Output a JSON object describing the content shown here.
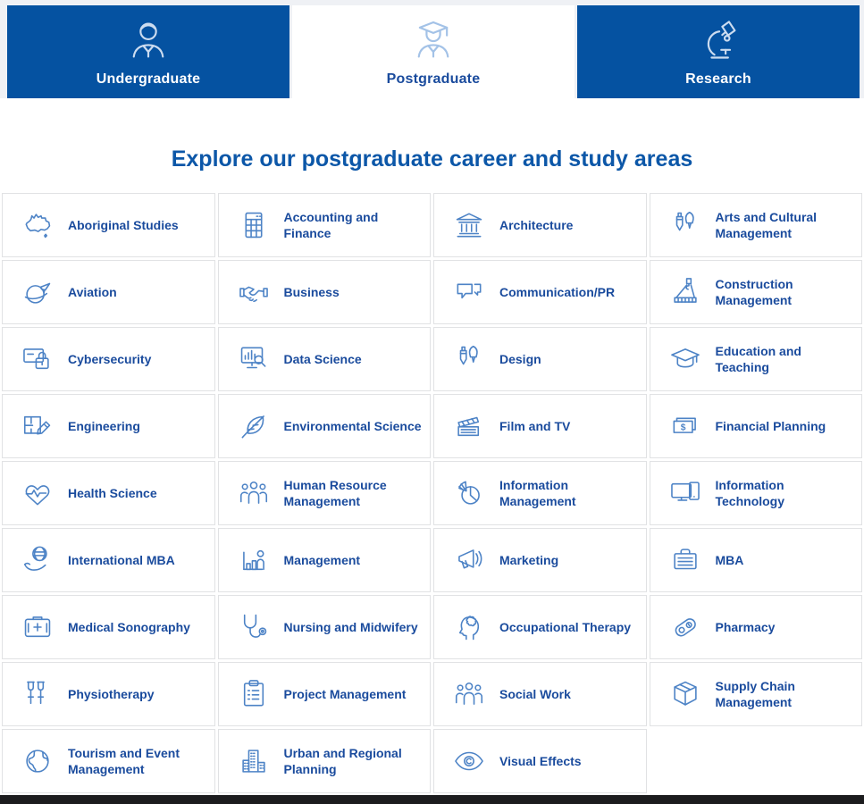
{
  "tabs": [
    {
      "label": "Undergraduate",
      "icon": "person-icon",
      "active": false
    },
    {
      "label": "Postgraduate",
      "icon": "graduate-icon",
      "active": true
    },
    {
      "label": "Research",
      "icon": "microscope-icon",
      "active": false
    }
  ],
  "heading": "Explore our postgraduate career and study areas",
  "study_areas": [
    {
      "label": "Aboriginal Studies",
      "icon": "australia-map-icon"
    },
    {
      "label": "Accounting and Finance",
      "icon": "calculator-icon"
    },
    {
      "label": "Architecture",
      "icon": "columns-building-icon"
    },
    {
      "label": "Arts and Cultural Management",
      "icon": "pen-brush-icon"
    },
    {
      "label": "Aviation",
      "icon": "globe-plane-icon"
    },
    {
      "label": "Business",
      "icon": "handshake-icon"
    },
    {
      "label": "Communication/PR",
      "icon": "speech-bubbles-icon"
    },
    {
      "label": "Construction Management",
      "icon": "crane-icon"
    },
    {
      "label": "Cybersecurity",
      "icon": "card-lock-icon"
    },
    {
      "label": "Data Science",
      "icon": "chart-magnifier-icon"
    },
    {
      "label": "Design",
      "icon": "pen-brush-icon"
    },
    {
      "label": "Education and Teaching",
      "icon": "graduation-cap-icon"
    },
    {
      "label": "Engineering",
      "icon": "blueprint-pencil-icon"
    },
    {
      "label": "Environmental Science",
      "icon": "leaf-icon"
    },
    {
      "label": "Film and TV",
      "icon": "clapperboard-icon"
    },
    {
      "label": "Financial Planning",
      "icon": "banknote-icon"
    },
    {
      "label": "Health Science",
      "icon": "heart-pulse-icon"
    },
    {
      "label": "Human Resource Management",
      "icon": "people-group-icon"
    },
    {
      "label": "Information Management",
      "icon": "pie-chart-icon"
    },
    {
      "label": "Information Technology",
      "icon": "monitor-phone-icon"
    },
    {
      "label": "International MBA",
      "icon": "hand-globe-icon"
    },
    {
      "label": "Management",
      "icon": "bar-chart-person-icon"
    },
    {
      "label": "Marketing",
      "icon": "megaphone-icon"
    },
    {
      "label": "MBA",
      "icon": "briefcase-icon"
    },
    {
      "label": "Medical Sonography",
      "icon": "first-aid-kit-icon"
    },
    {
      "label": "Nursing and Midwifery",
      "icon": "stethoscope-icon"
    },
    {
      "label": "Occupational Therapy",
      "icon": "head-brain-icon"
    },
    {
      "label": "Pharmacy",
      "icon": "pill-blister-icon"
    },
    {
      "label": "Physiotherapy",
      "icon": "crutches-icon"
    },
    {
      "label": "Project Management",
      "icon": "clipboard-checklist-icon"
    },
    {
      "label": "Social Work",
      "icon": "people-group-icon"
    },
    {
      "label": "Supply Chain Management",
      "icon": "box-icon"
    },
    {
      "label": "Tourism and Event Management",
      "icon": "globe-icon"
    },
    {
      "label": "Urban and Regional Planning",
      "icon": "buildings-icon"
    },
    {
      "label": "Visual Effects",
      "icon": "eye-icon"
    }
  ],
  "colors": {
    "tab_blue": "#0552a1",
    "band_bg": "#eff1f5",
    "heading_blue": "#0c57a8",
    "label_navy": "#1a4b9d",
    "icon_blue": "#4d83c6",
    "border_gray": "#e1e2e4",
    "footer_black": "#1c1c1e"
  }
}
